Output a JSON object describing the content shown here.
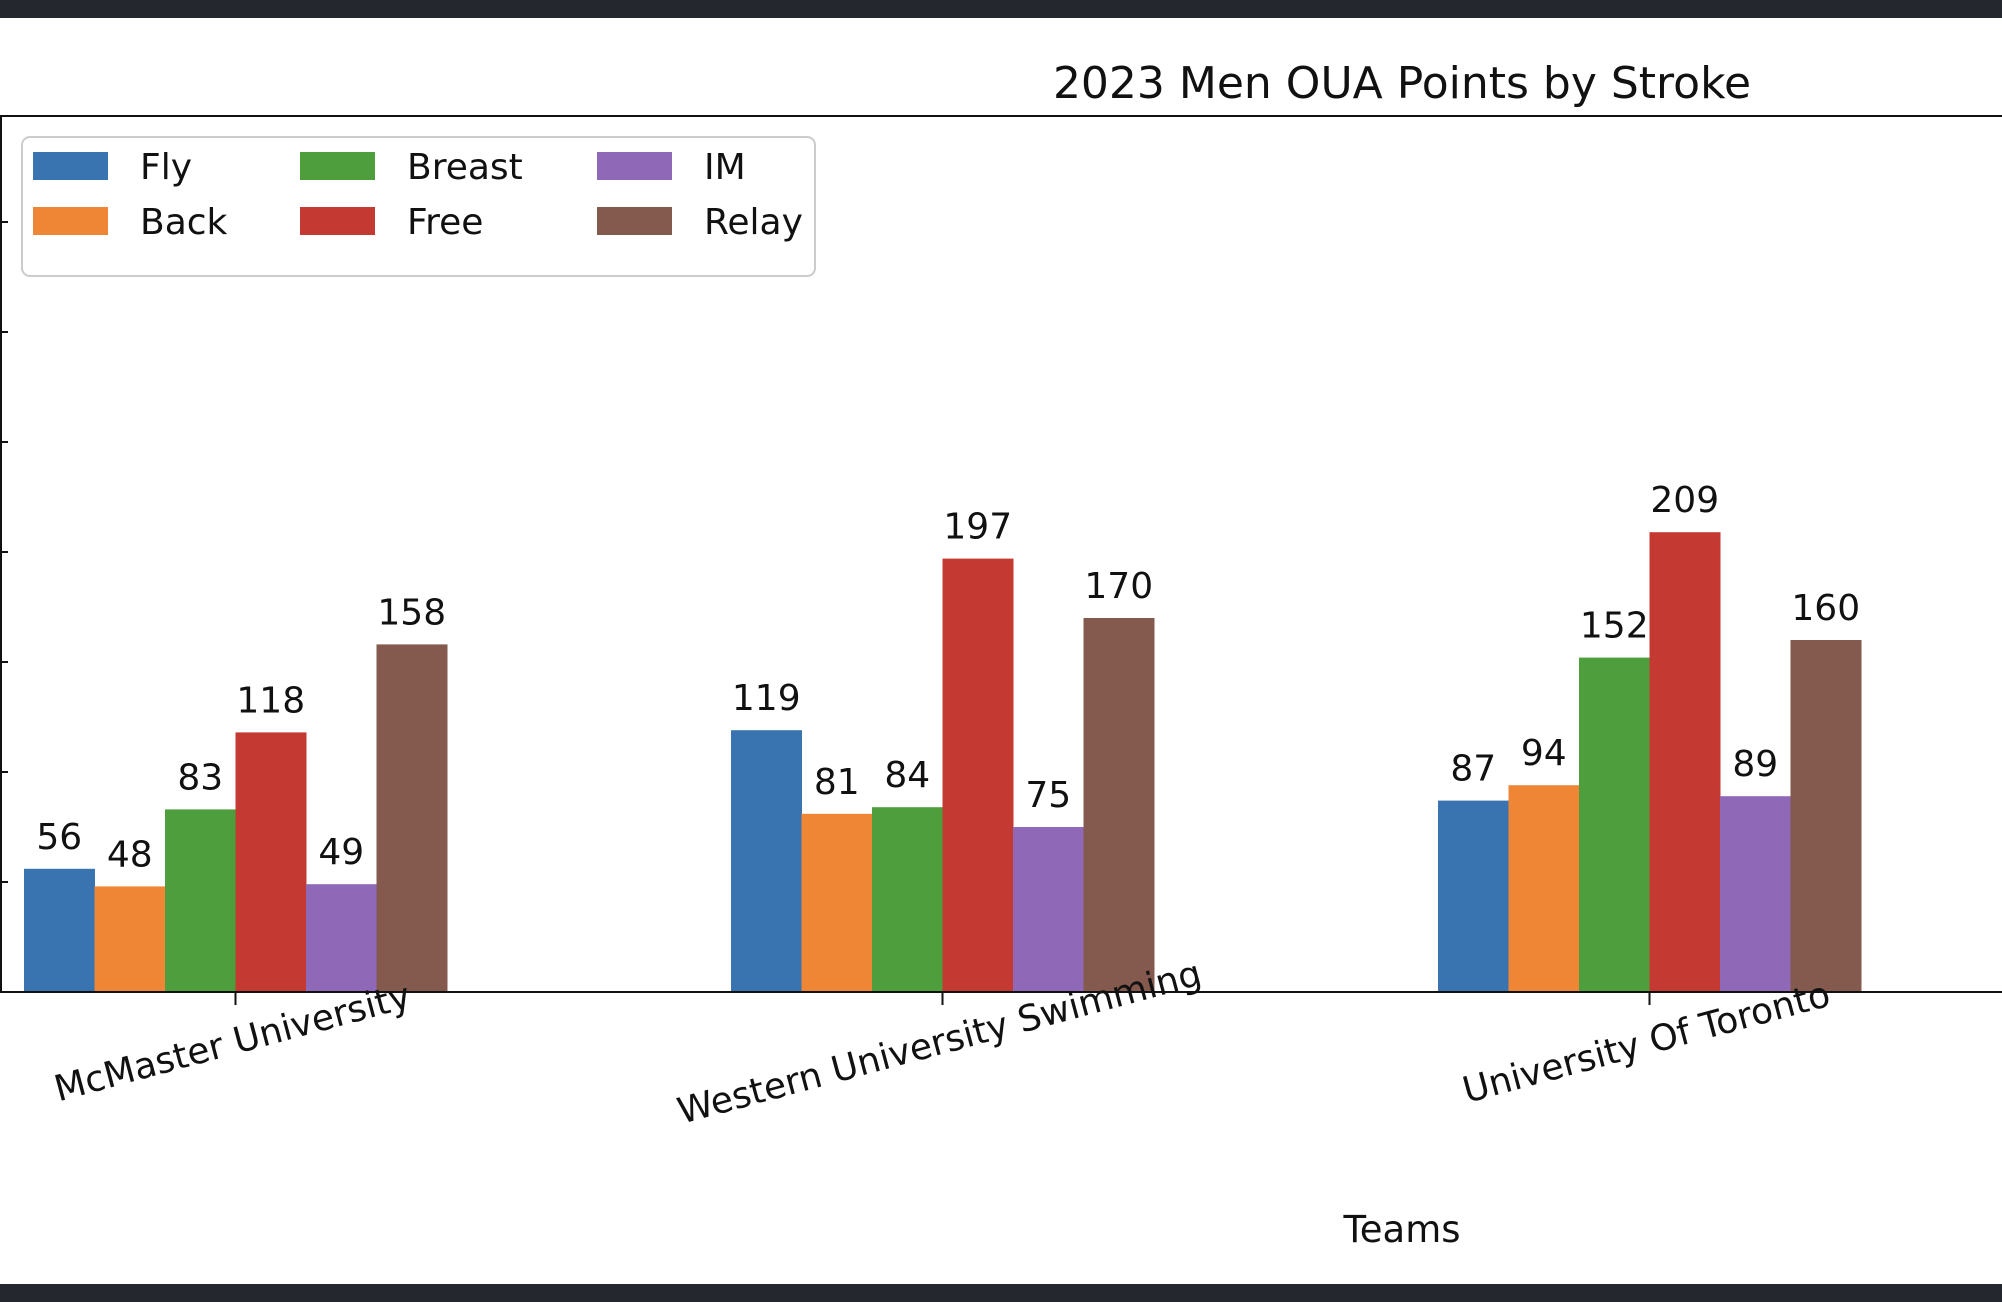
{
  "chart_data": {
    "type": "bar",
    "title": "2023 Men OUA Points by Stroke",
    "xlabel": "Teams",
    "ylabel": "",
    "ylim": [
      0,
      400
    ],
    "categories": [
      "McMaster University",
      "Western University Swimming",
      "University Of Toronto"
    ],
    "series": [
      {
        "name": "Fly",
        "values": [
          56,
          119,
          87
        ],
        "color": "#3a74b0"
      },
      {
        "name": "Back",
        "values": [
          48,
          81,
          94
        ],
        "color": "#ef8636"
      },
      {
        "name": "Breast",
        "values": [
          83,
          84,
          152
        ],
        "color": "#4e9e3d"
      },
      {
        "name": "Free",
        "values": [
          118,
          197,
          209
        ],
        "color": "#c43a33"
      },
      {
        "name": "IM",
        "values": [
          49,
          75,
          89
        ],
        "color": "#9068b8"
      },
      {
        "name": "Relay",
        "values": [
          158,
          170,
          160
        ],
        "color": "#84594e"
      }
    ],
    "grid": false,
    "legend_position": "top-left"
  }
}
